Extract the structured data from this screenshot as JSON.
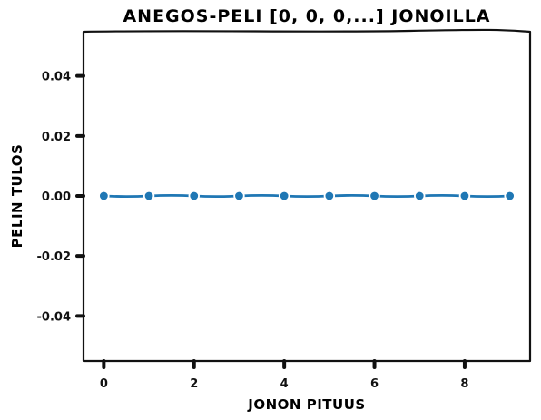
{
  "chart_data": {
    "type": "line",
    "title": "ANEGOS-PELI [0, 0, 0,...] JONOILLA",
    "xlabel": "JONON PITUUS",
    "ylabel": "PELIN TULOS",
    "x": [
      0,
      1,
      2,
      3,
      4,
      5,
      6,
      7,
      8,
      9
    ],
    "series": [
      {
        "values": [
          0,
          0,
          0,
          0,
          0,
          0,
          0,
          0,
          0,
          0
        ],
        "color": "#1f77b4"
      }
    ],
    "xlim": [
      -0.45,
      9.45
    ],
    "ylim": [
      -0.055,
      0.055
    ],
    "xticks": [
      0,
      2,
      4,
      6,
      8
    ],
    "xtick_labels": [
      "0",
      "2",
      "4",
      "6",
      "8"
    ],
    "yticks": [
      0.04,
      0.02,
      0.0,
      -0.02,
      -0.04
    ],
    "ytick_labels": [
      "0.04",
      "0.02",
      "0.00",
      "-0.02",
      "-0.04"
    ],
    "grid": false,
    "style": "xkcd"
  }
}
